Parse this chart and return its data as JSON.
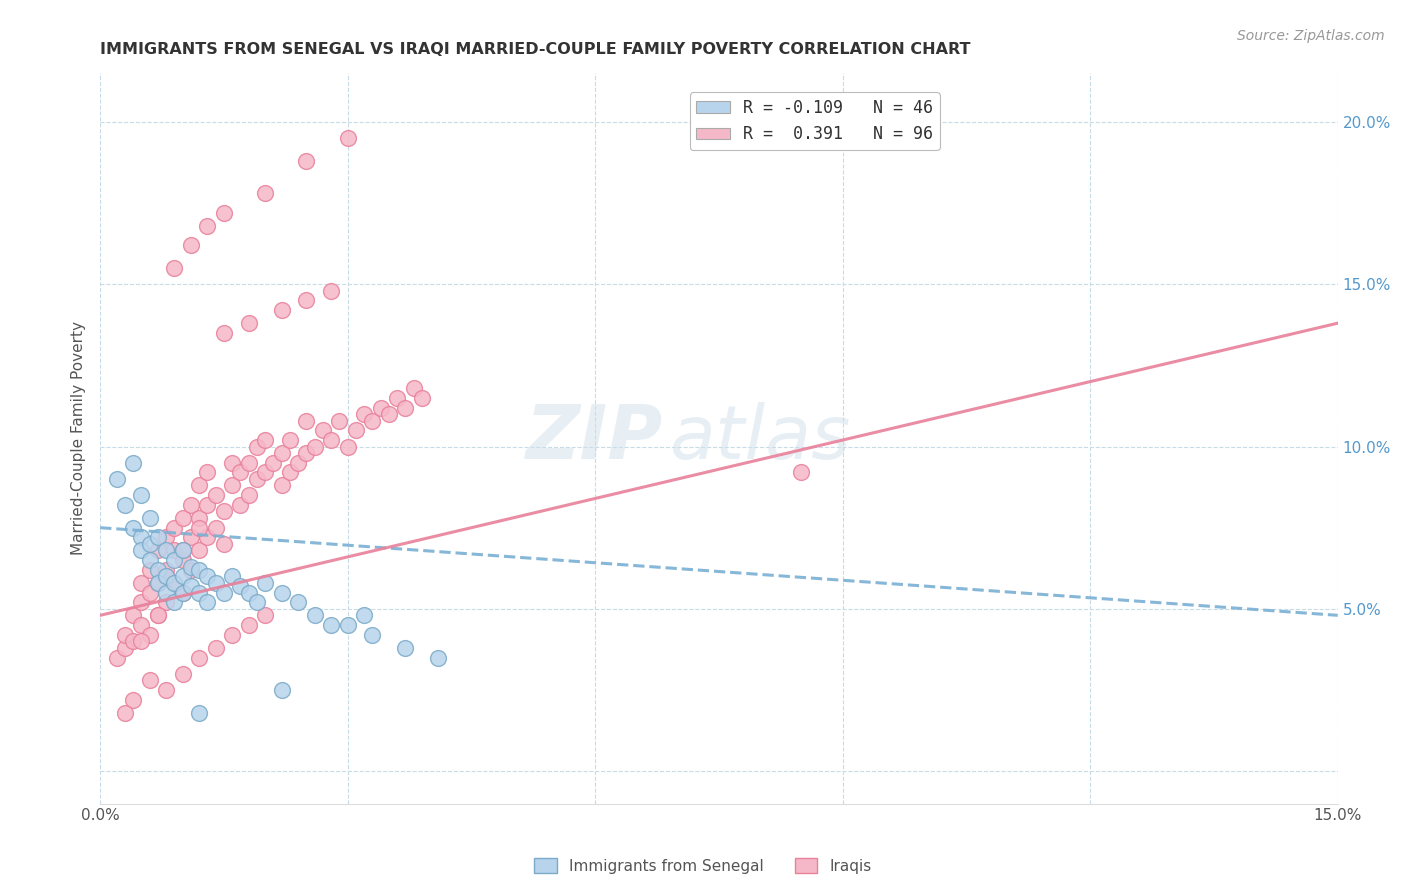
{
  "title": "IMMIGRANTS FROM SENEGAL VS IRAQI MARRIED-COUPLE FAMILY POVERTY CORRELATION CHART",
  "source": "Source: ZipAtlas.com",
  "ylabel": "Married-Couple Family Poverty",
  "xlim": [
    0.0,
    0.15
  ],
  "ylim": [
    -0.01,
    0.215
  ],
  "yticks_right": [
    0.0,
    0.05,
    0.1,
    0.15,
    0.2
  ],
  "ytick_right_labels": [
    "",
    "5.0%",
    "10.0%",
    "15.0%",
    "20.0%"
  ],
  "watermark_line1": "ZIP",
  "watermark_line2": "atlas",
  "legend_entries": [
    {
      "label": "R = -0.109   N = 46",
      "color": "#b8d4ec"
    },
    {
      "label": "R =  0.391   N = 96",
      "color": "#f5b8c8"
    }
  ],
  "senegal_color": "#b8d4ec",
  "senegal_edge": "#7aaac8",
  "iraqi_color": "#f5b8c8",
  "iraqi_edge": "#e8809a",
  "senegal_line_color": "#7ab0d4",
  "iraqi_line_color": "#e8809a",
  "background_color": "#ffffff",
  "grid_color": "#c8dce8",
  "title_color": "#333333",
  "source_color": "#999999",
  "axis_label_color": "#555555",
  "tick_color_right": "#5599cc",
  "tick_color_bottom": "#555555",
  "senegal_x": [
    0.002,
    0.003,
    0.004,
    0.004,
    0.005,
    0.005,
    0.005,
    0.006,
    0.006,
    0.006,
    0.007,
    0.007,
    0.007,
    0.008,
    0.008,
    0.008,
    0.009,
    0.009,
    0.009,
    0.01,
    0.01,
    0.01,
    0.011,
    0.011,
    0.012,
    0.012,
    0.013,
    0.013,
    0.014,
    0.015,
    0.016,
    0.017,
    0.018,
    0.019,
    0.02,
    0.022,
    0.024,
    0.026,
    0.028,
    0.03,
    0.033,
    0.037,
    0.041,
    0.032,
    0.022,
    0.012
  ],
  "senegal_y": [
    0.09,
    0.082,
    0.095,
    0.075,
    0.085,
    0.072,
    0.068,
    0.078,
    0.065,
    0.07,
    0.072,
    0.062,
    0.058,
    0.068,
    0.06,
    0.055,
    0.065,
    0.058,
    0.052,
    0.068,
    0.06,
    0.055,
    0.063,
    0.057,
    0.062,
    0.055,
    0.06,
    0.052,
    0.058,
    0.055,
    0.06,
    0.057,
    0.055,
    0.052,
    0.058,
    0.055,
    0.052,
    0.048,
    0.045,
    0.045,
    0.042,
    0.038,
    0.035,
    0.048,
    0.025,
    0.018
  ],
  "iraqi_x": [
    0.002,
    0.003,
    0.003,
    0.004,
    0.004,
    0.005,
    0.005,
    0.005,
    0.006,
    0.006,
    0.006,
    0.007,
    0.007,
    0.007,
    0.008,
    0.008,
    0.008,
    0.009,
    0.009,
    0.009,
    0.01,
    0.01,
    0.01,
    0.011,
    0.011,
    0.011,
    0.012,
    0.012,
    0.012,
    0.013,
    0.013,
    0.013,
    0.014,
    0.014,
    0.015,
    0.015,
    0.016,
    0.016,
    0.017,
    0.017,
    0.018,
    0.018,
    0.019,
    0.019,
    0.02,
    0.02,
    0.021,
    0.022,
    0.022,
    0.023,
    0.023,
    0.024,
    0.025,
    0.025,
    0.026,
    0.027,
    0.028,
    0.029,
    0.03,
    0.031,
    0.032,
    0.033,
    0.034,
    0.035,
    0.036,
    0.037,
    0.038,
    0.039,
    0.015,
    0.018,
    0.022,
    0.025,
    0.028,
    0.008,
    0.01,
    0.012,
    0.005,
    0.007,
    0.006,
    0.004,
    0.003,
    0.008,
    0.01,
    0.012,
    0.014,
    0.016,
    0.018,
    0.02,
    0.085,
    0.009,
    0.011,
    0.013,
    0.015,
    0.02,
    0.025,
    0.03
  ],
  "iraqi_y": [
    0.035,
    0.038,
    0.042,
    0.04,
    0.048,
    0.045,
    0.052,
    0.058,
    0.042,
    0.055,
    0.062,
    0.048,
    0.058,
    0.068,
    0.052,
    0.062,
    0.072,
    0.058,
    0.068,
    0.075,
    0.055,
    0.065,
    0.078,
    0.062,
    0.072,
    0.082,
    0.068,
    0.078,
    0.088,
    0.072,
    0.082,
    0.092,
    0.075,
    0.085,
    0.07,
    0.08,
    0.088,
    0.095,
    0.082,
    0.092,
    0.085,
    0.095,
    0.09,
    0.1,
    0.092,
    0.102,
    0.095,
    0.088,
    0.098,
    0.092,
    0.102,
    0.095,
    0.098,
    0.108,
    0.1,
    0.105,
    0.102,
    0.108,
    0.1,
    0.105,
    0.11,
    0.108,
    0.112,
    0.11,
    0.115,
    0.112,
    0.118,
    0.115,
    0.135,
    0.138,
    0.142,
    0.145,
    0.148,
    0.06,
    0.068,
    0.075,
    0.04,
    0.048,
    0.028,
    0.022,
    0.018,
    0.025,
    0.03,
    0.035,
    0.038,
    0.042,
    0.045,
    0.048,
    0.092,
    0.155,
    0.162,
    0.168,
    0.172,
    0.178,
    0.188,
    0.195
  ],
  "senegal_trend_x0": 0.0,
  "senegal_trend_x1": 0.15,
  "senegal_trend_y0": 0.075,
  "senegal_trend_y1": 0.048,
  "iraqi_trend_x0": 0.0,
  "iraqi_trend_x1": 0.15,
  "iraqi_trend_y0": 0.048,
  "iraqi_trend_y1": 0.138
}
